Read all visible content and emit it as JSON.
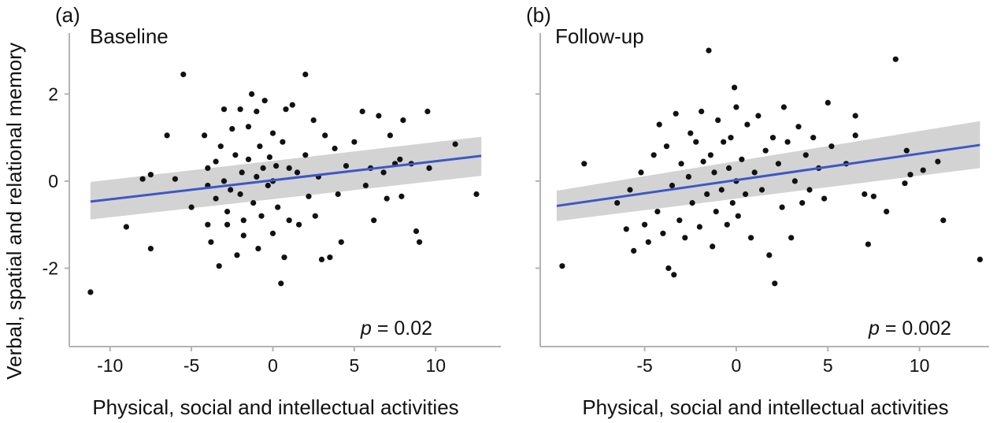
{
  "ylabel": "Verbal, spatial and relational memory",
  "xlabel": "Physical, social and intellectual activities",
  "colors": {
    "points": "#111111",
    "fit_line": "#3f57c4",
    "ci_band": "#d3d3d3",
    "axis": "#b3b3b3",
    "text": "#111111"
  },
  "chart_data": [
    {
      "type": "scatter",
      "panel_label": "(a)",
      "title": "Baseline",
      "xlabel": "Physical, social and intellectual activities",
      "ylabel": "Verbal, spatial and relational memory",
      "xlim": [
        -12.5,
        14.0
      ],
      "ylim": [
        -3.8,
        3.4
      ],
      "x_ticks": [
        -10,
        -5,
        0,
        5,
        10
      ],
      "x_tick_labels": [
        "-10",
        "-5",
        "0",
        "5",
        "10"
      ],
      "y_ticks": [
        -2,
        0,
        2
      ],
      "y_tick_labels": [
        "-2",
        "0",
        "2"
      ],
      "grid": false,
      "annotation": {
        "p_symbol": "p",
        "p_text": " = 0.02"
      },
      "fit": {
        "x": [
          -11.2,
          12.8
        ],
        "y": [
          -0.47,
          0.58
        ],
        "ci_lower": [
          -0.88,
          0.12
        ],
        "ci_upper": [
          -0.02,
          1.02
        ]
      },
      "points": [
        [
          -11.2,
          -2.55
        ],
        [
          -9.0,
          -1.05
        ],
        [
          -8.0,
          0.05
        ],
        [
          -7.5,
          0.15
        ],
        [
          -7.5,
          -1.55
        ],
        [
          -6.5,
          1.05
        ],
        [
          -6.0,
          0.05
        ],
        [
          -5.5,
          2.45
        ],
        [
          -5.0,
          -0.6
        ],
        [
          -4.2,
          1.05
        ],
        [
          -4.0,
          0.3
        ],
        [
          -4.0,
          -0.1
        ],
        [
          -4.0,
          -1.0
        ],
        [
          -3.8,
          -1.4
        ],
        [
          -3.5,
          0.45
        ],
        [
          -3.5,
          -0.4
        ],
        [
          -3.3,
          -1.95
        ],
        [
          -3.2,
          0.8
        ],
        [
          -3.0,
          0.0
        ],
        [
          -3.0,
          1.65
        ],
        [
          -2.8,
          -0.7
        ],
        [
          -2.8,
          -1.0
        ],
        [
          -2.6,
          -0.2
        ],
        [
          -2.5,
          1.2
        ],
        [
          -2.3,
          0.6
        ],
        [
          -2.2,
          -1.7
        ],
        [
          -2.0,
          -0.3
        ],
        [
          -2.0,
          1.65
        ],
        [
          -1.9,
          0.2
        ],
        [
          -1.8,
          -0.9
        ],
        [
          -1.8,
          -1.25
        ],
        [
          -1.5,
          0.5
        ],
        [
          -1.5,
          1.25
        ],
        [
          -1.3,
          2.0
        ],
        [
          -1.2,
          -0.5
        ],
        [
          -1.0,
          0.1
        ],
        [
          -1.0,
          1.6
        ],
        [
          -0.9,
          -1.55
        ],
        [
          -0.8,
          0.8
        ],
        [
          -0.7,
          -0.8
        ],
        [
          -0.6,
          0.3
        ],
        [
          -0.5,
          1.85
        ],
        [
          -0.3,
          -0.1
        ],
        [
          -0.2,
          0.55
        ],
        [
          0.0,
          0.0
        ],
        [
          0.0,
          -1.2
        ],
        [
          0.0,
          1.1
        ],
        [
          0.2,
          0.35
        ],
        [
          0.3,
          -0.6
        ],
        [
          0.5,
          -2.35
        ],
        [
          0.6,
          0.9
        ],
        [
          0.7,
          -1.75
        ],
        [
          0.8,
          1.65
        ],
        [
          1.0,
          0.3
        ],
        [
          1.0,
          -0.9
        ],
        [
          1.2,
          1.75
        ],
        [
          1.5,
          0.2
        ],
        [
          1.6,
          -1.0
        ],
        [
          2.0,
          2.45
        ],
        [
          2.0,
          0.6
        ],
        [
          2.2,
          -0.35
        ],
        [
          2.5,
          1.4
        ],
        [
          2.6,
          -0.8
        ],
        [
          2.8,
          0.1
        ],
        [
          3.0,
          -1.8
        ],
        [
          3.2,
          1.05
        ],
        [
          3.5,
          -1.75
        ],
        [
          3.8,
          0.75
        ],
        [
          4.0,
          -0.3
        ],
        [
          4.2,
          -1.4
        ],
        [
          4.5,
          0.35
        ],
        [
          5.0,
          0.9
        ],
        [
          5.5,
          1.6
        ],
        [
          5.7,
          -0.1
        ],
        [
          6.0,
          0.3
        ],
        [
          6.2,
          -0.9
        ],
        [
          6.5,
          1.5
        ],
        [
          6.8,
          0.2
        ],
        [
          7.0,
          -0.4
        ],
        [
          7.2,
          1.05
        ],
        [
          7.5,
          0.4
        ],
        [
          7.8,
          0.5
        ],
        [
          7.9,
          -0.35
        ],
        [
          8.0,
          1.4
        ],
        [
          8.5,
          0.4
        ],
        [
          8.8,
          -1.15
        ],
        [
          9.0,
          -1.4
        ],
        [
          9.5,
          1.6
        ],
        [
          9.6,
          0.3
        ],
        [
          11.2,
          0.85
        ],
        [
          12.5,
          -0.3
        ]
      ]
    },
    {
      "type": "scatter",
      "panel_label": "(b)",
      "title": "Follow-up",
      "xlabel": "Physical, social and intellectual activities",
      "ylabel": "Verbal, spatial and relational memory",
      "xlim": [
        -10.7,
        13.8
      ],
      "ylim": [
        -3.8,
        3.4
      ],
      "x_ticks": [
        -5,
        0,
        5,
        10
      ],
      "x_tick_labels": [
        "-5",
        "0",
        "5",
        "10"
      ],
      "y_ticks": [
        -2,
        0,
        2
      ],
      "y_tick_labels": [],
      "grid": false,
      "annotation": {
        "p_symbol": "p",
        "p_text": " = 0.002"
      },
      "fit": {
        "x": [
          -9.8,
          13.3
        ],
        "y": [
          -0.57,
          0.83
        ],
        "ci_lower": [
          -0.92,
          0.3
        ],
        "ci_upper": [
          -0.22,
          1.38
        ]
      },
      "points": [
        [
          -9.5,
          -1.95
        ],
        [
          -8.3,
          0.4
        ],
        [
          -6.5,
          -0.5
        ],
        [
          -6.0,
          -1.1
        ],
        [
          -5.8,
          -0.2
        ],
        [
          -5.6,
          -1.6
        ],
        [
          -5.2,
          0.2
        ],
        [
          -5.0,
          -1.0
        ],
        [
          -4.8,
          -1.4
        ],
        [
          -4.5,
          0.6
        ],
        [
          -4.3,
          -0.7
        ],
        [
          -4.2,
          1.3
        ],
        [
          -4.0,
          -1.2
        ],
        [
          -3.8,
          0.8
        ],
        [
          -3.7,
          -2.0
        ],
        [
          -3.5,
          -0.1
        ],
        [
          -3.4,
          -2.15
        ],
        [
          -3.3,
          1.55
        ],
        [
          -3.1,
          -0.9
        ],
        [
          -3.0,
          0.4
        ],
        [
          -2.8,
          -1.3
        ],
        [
          -2.6,
          0.1
        ],
        [
          -2.5,
          1.1
        ],
        [
          -2.4,
          -0.5
        ],
        [
          -2.2,
          0.9
        ],
        [
          -2.0,
          -1.05
        ],
        [
          -1.9,
          1.6
        ],
        [
          -1.8,
          0.45
        ],
        [
          -1.6,
          -0.3
        ],
        [
          -1.5,
          3.0
        ],
        [
          -1.4,
          0.6
        ],
        [
          -1.3,
          -1.5
        ],
        [
          -1.2,
          0.2
        ],
        [
          -1.1,
          -0.7
        ],
        [
          -1.0,
          1.4
        ],
        [
          -0.8,
          -0.2
        ],
        [
          -0.7,
          0.9
        ],
        [
          -0.5,
          -1.0
        ],
        [
          -0.4,
          0.3
        ],
        [
          -0.3,
          1.0
        ],
        [
          -0.2,
          -0.5
        ],
        [
          -0.1,
          2.15
        ],
        [
          0.0,
          1.7
        ],
        [
          0.0,
          0.0
        ],
        [
          0.1,
          -0.8
        ],
        [
          0.3,
          0.5
        ],
        [
          0.5,
          -0.3
        ],
        [
          0.6,
          1.3
        ],
        [
          0.8,
          -1.3
        ],
        [
          1.0,
          0.2
        ],
        [
          1.2,
          1.5
        ],
        [
          1.4,
          -0.2
        ],
        [
          1.6,
          0.7
        ],
        [
          1.8,
          -1.7
        ],
        [
          2.0,
          1.0
        ],
        [
          2.1,
          -2.35
        ],
        [
          2.3,
          0.4
        ],
        [
          2.5,
          -0.6
        ],
        [
          2.6,
          1.7
        ],
        [
          2.8,
          0.9
        ],
        [
          3.0,
          -1.3
        ],
        [
          3.2,
          0.0
        ],
        [
          3.4,
          1.25
        ],
        [
          3.6,
          -0.5
        ],
        [
          3.8,
          0.6
        ],
        [
          4.0,
          -0.2
        ],
        [
          4.2,
          1.0
        ],
        [
          4.5,
          0.3
        ],
        [
          4.8,
          -0.4
        ],
        [
          5.0,
          1.8
        ],
        [
          5.2,
          0.8
        ],
        [
          6.0,
          0.4
        ],
        [
          6.5,
          1.5
        ],
        [
          6.5,
          1.05
        ],
        [
          7.0,
          -0.3
        ],
        [
          7.2,
          -1.45
        ],
        [
          7.5,
          -0.35
        ],
        [
          8.2,
          -0.7
        ],
        [
          8.7,
          2.8
        ],
        [
          9.2,
          -0.05
        ],
        [
          9.3,
          0.7
        ],
        [
          9.5,
          0.15
        ],
        [
          10.2,
          0.25
        ],
        [
          11.0,
          0.45
        ],
        [
          11.3,
          -0.9
        ],
        [
          13.3,
          -1.8
        ]
      ]
    }
  ]
}
